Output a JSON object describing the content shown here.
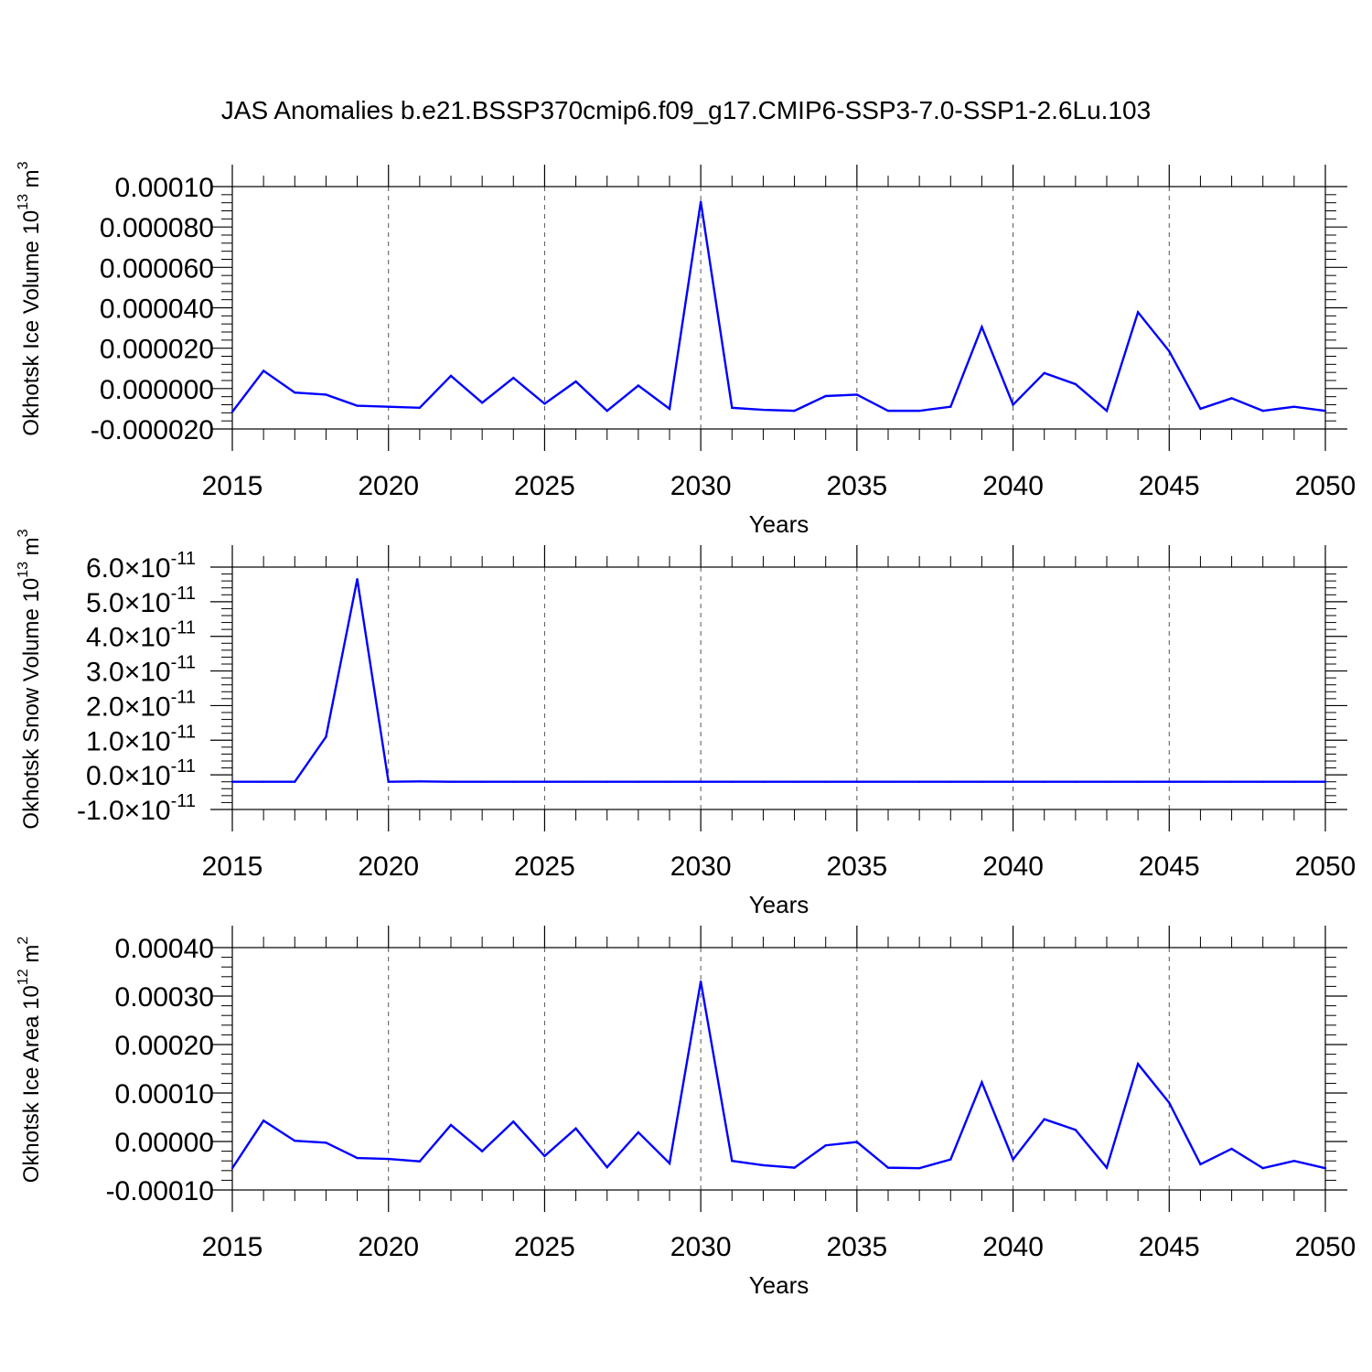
{
  "chart_data": {
    "type": "line",
    "title": "JAS Anomalies b.e21.BSSP370cmip6.f09_g17.CMIP6-SSP3-7.0-SSP1-2.6Lu.103",
    "series_color": "#0000ff",
    "x": [
      2015,
      2016,
      2017,
      2018,
      2019,
      2020,
      2021,
      2022,
      2023,
      2024,
      2025,
      2026,
      2027,
      2028,
      2029,
      2030,
      2031,
      2032,
      2033,
      2034,
      2035,
      2036,
      2037,
      2038,
      2039,
      2040,
      2041,
      2042,
      2043,
      2044,
      2045,
      2046,
      2047,
      2048,
      2049,
      2050
    ],
    "panels": [
      {
        "xlabel": "Years",
        "ylabel_main": "Okhotsk Ice Volume 10",
        "ylabel_exp": "13",
        "ylabel_unit": " m",
        "ylabel_unit_exp": "3",
        "xlim": [
          2015,
          2050
        ],
        "ylim": [
          -2e-05,
          0.0001
        ],
        "xticks": [
          "2015",
          "2020",
          "2025",
          "2030",
          "2035",
          "2040",
          "2045",
          "2050"
        ],
        "yticks": [
          {
            "value": 0.0001,
            "label": "0.00010"
          },
          {
            "value": 8e-05,
            "label": "0.000080"
          },
          {
            "value": 6e-05,
            "label": "0.000060"
          },
          {
            "value": 4e-05,
            "label": "0.000040"
          },
          {
            "value": 2e-05,
            "label": "0.000020"
          },
          {
            "value": 0.0,
            "label": "0.000000"
          },
          {
            "value": -2e-05,
            "label": "-0.000020"
          }
        ],
        "values": [
          -1.15e-05,
          8.8e-06,
          -2e-06,
          -3e-06,
          -8.5e-06,
          -9e-06,
          -9.5e-06,
          6.3e-06,
          -7e-06,
          5.3e-06,
          -7.5e-06,
          3.5e-06,
          -1.1e-05,
          1.5e-06,
          -1e-05,
          9.25e-05,
          -9.5e-06,
          -1.05e-05,
          -1.1e-05,
          -3.7e-06,
          -3e-06,
          -1.1e-05,
          -1.1e-05,
          -9e-06,
          3.05e-05,
          -8e-06,
          7.7e-06,
          2.2e-06,
          -1.1e-05,
          3.78e-05,
          1.85e-05,
          -1e-05,
          -4.8e-06,
          -1.1e-05,
          -9e-06,
          -1.1e-05
        ]
      },
      {
        "xlabel": "Years",
        "ylabel_main": "Okhotsk Snow Volume 10",
        "ylabel_exp": "13",
        "ylabel_unit": " m",
        "ylabel_unit_exp": "3",
        "xlim": [
          2015,
          2050
        ],
        "ylim": [
          -1e-11,
          6e-11
        ],
        "xticks": [
          "2015",
          "2020",
          "2025",
          "2030",
          "2035",
          "2040",
          "2045",
          "2050"
        ],
        "tick_multiplier": "×10",
        "tick_exponent": "-11",
        "yticks": [
          {
            "value": 6e-11,
            "label": "6.0"
          },
          {
            "value": 5e-11,
            "label": "5.0"
          },
          {
            "value": 4e-11,
            "label": "4.0"
          },
          {
            "value": 3e-11,
            "label": "3.0"
          },
          {
            "value": 2e-11,
            "label": "2.0"
          },
          {
            "value": 1e-11,
            "label": "1.0"
          },
          {
            "value": 0.0,
            "label": "0.0"
          },
          {
            "value": -1e-11,
            "label": "-1.0"
          }
        ],
        "values": [
          -2e-12,
          -2e-12,
          -2e-12,
          1.1e-11,
          5.65e-11,
          -2e-12,
          -1.9e-12,
          -2e-12,
          -2e-12,
          -2e-12,
          -2e-12,
          -2e-12,
          -2e-12,
          -2e-12,
          -2e-12,
          -2e-12,
          -2e-12,
          -2e-12,
          -2e-12,
          -2e-12,
          -2e-12,
          -2e-12,
          -2e-12,
          -2e-12,
          -2e-12,
          -2e-12,
          -2e-12,
          -2e-12,
          -2e-12,
          -2e-12,
          -2e-12,
          -2e-12,
          -2e-12,
          -2e-12,
          -2e-12,
          -2e-12
        ]
      },
      {
        "xlabel": "Years",
        "ylabel_main": "Okhotsk Ice Area 10",
        "ylabel_exp": "12",
        "ylabel_unit": " m",
        "ylabel_unit_exp": "2",
        "xlim": [
          2015,
          2050
        ],
        "ylim": [
          -0.0001,
          0.0004
        ],
        "xticks": [
          "2015",
          "2020",
          "2025",
          "2030",
          "2035",
          "2040",
          "2045",
          "2050"
        ],
        "yticks": [
          {
            "value": 0.0004,
            "label": "0.00040"
          },
          {
            "value": 0.0003,
            "label": "0.00030"
          },
          {
            "value": 0.0002,
            "label": "0.00020"
          },
          {
            "value": 0.0001,
            "label": "0.00010"
          },
          {
            "value": 0.0,
            "label": "0.00000"
          },
          {
            "value": -0.0001,
            "label": "-0.00010"
          }
        ],
        "values": [
          -5.5e-05,
          4.3e-05,
          1.5e-06,
          -2.5e-06,
          -3.4e-05,
          -3.6e-05,
          -4.1e-05,
          3.4e-05,
          -2e-05,
          4.1e-05,
          -3e-05,
          2.7e-05,
          -5.3e-05,
          1.9e-05,
          -4.5e-05,
          0.00033,
          -4e-05,
          -4.9e-05,
          -5.4e-05,
          -8e-06,
          -1e-06,
          -5.4e-05,
          -5.5e-05,
          -3.7e-05,
          0.000122,
          -3.7e-05,
          4.6e-05,
          2.4e-05,
          -5.4e-05,
          0.00016,
          8e-05,
          -4.7e-05,
          -1.5e-05,
          -5.5e-05,
          -4e-05,
          -5.5e-05
        ]
      }
    ]
  }
}
